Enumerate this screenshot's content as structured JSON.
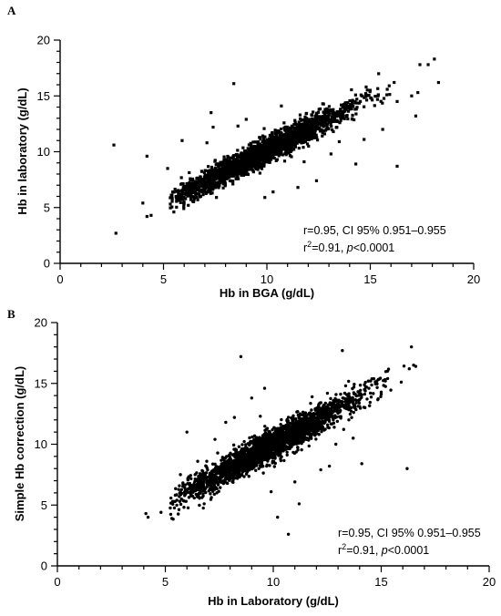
{
  "chart_data": [
    {
      "panel": "A",
      "type": "scatter",
      "xlabel": "Hb in BGA (g/dL)",
      "ylabel": "Hb in laboratory (g/dL)",
      "xlim": [
        0,
        20
      ],
      "ylim": [
        0,
        20
      ],
      "xticks": [
        0,
        5,
        10,
        15,
        20
      ],
      "yticks": [
        0,
        5,
        10,
        15,
        20
      ],
      "minor_x_step": 1,
      "minor_y_step": 1,
      "point_shape": "square",
      "color": "#000000",
      "grid": false,
      "stats_line1": "r=0.95, CI 95% 0.951–0.955",
      "stats_r2_prefix": "r",
      "stats_r2_sup": "2",
      "stats_r2_value": "=0.91, ",
      "stats_p_label": "p",
      "stats_p_value": "<0.0001",
      "trend": {
        "slope": 0.95,
        "intercept": 0.6,
        "spread": 0.55,
        "x_center": 9.8,
        "x_sd": 2.1,
        "n_cloud": 2600
      },
      "points": [
        [
          2.6,
          10.6
        ],
        [
          2.7,
          2.7
        ],
        [
          4.0,
          5.4
        ],
        [
          4.2,
          4.2
        ],
        [
          4.4,
          4.3
        ],
        [
          4.2,
          9.6
        ],
        [
          5.2,
          8.5
        ],
        [
          5.5,
          4.6
        ],
        [
          5.9,
          11.0
        ],
        [
          6.8,
          6.0
        ],
        [
          7.3,
          13.5
        ],
        [
          7.4,
          12.2
        ],
        [
          8.4,
          16.1
        ],
        [
          8.6,
          12.3
        ],
        [
          9.9,
          5.9
        ],
        [
          10.3,
          6.4
        ],
        [
          11.5,
          6.8
        ],
        [
          11.9,
          13.4
        ],
        [
          12.0,
          12.9
        ],
        [
          12.4,
          7.4
        ],
        [
          12.7,
          14.3
        ],
        [
          13.5,
          10.9
        ],
        [
          14.3,
          8.9
        ],
        [
          14.7,
          11.1
        ],
        [
          14.8,
          15.8
        ],
        [
          15.8,
          15.1
        ],
        [
          16.3,
          14.5
        ],
        [
          16.3,
          8.7
        ],
        [
          17.0,
          15.0
        ],
        [
          17.2,
          13.2
        ],
        [
          17.3,
          15.3
        ],
        [
          17.4,
          17.8
        ],
        [
          17.8,
          17.8
        ],
        [
          18.1,
          18.3
        ],
        [
          18.3,
          16.2
        ],
        [
          7.1,
          10.8
        ],
        [
          6.2,
          5.2
        ],
        [
          10.7,
          14.1
        ],
        [
          11.8,
          9.1
        ],
        [
          9.0,
          12.9
        ],
        [
          13.1,
          9.8
        ],
        [
          15.6,
          12.0
        ]
      ]
    },
    {
      "panel": "B",
      "type": "scatter",
      "xlabel": "Hb in Laboratory (g/dL)",
      "ylabel": "Simple Hb  correction (g/dL)",
      "xlim": [
        0,
        20
      ],
      "ylim": [
        0,
        20
      ],
      "xticks": [
        0,
        5,
        10,
        15,
        20
      ],
      "yticks": [
        0,
        5,
        10,
        15,
        20
      ],
      "minor_x_step": 1,
      "minor_y_step": 1,
      "point_shape": "circle",
      "color": "#000000",
      "grid": false,
      "stats_line1": "r=0.95, CI 95% 0.951–0.955",
      "stats_r2_prefix": "r",
      "stats_r2_sup": "2",
      "stats_r2_value": "=0.91, ",
      "stats_p_label": "p",
      "stats_p_value": "<0.0001",
      "trend": {
        "slope": 0.98,
        "intercept": 0.2,
        "spread": 0.6,
        "x_center": 9.8,
        "x_sd": 2.1,
        "n_cloud": 2600
      },
      "points": [
        [
          4.1,
          4.3
        ],
        [
          4.2,
          4.0
        ],
        [
          4.8,
          4.4
        ],
        [
          5.3,
          3.9
        ],
        [
          5.7,
          7.5
        ],
        [
          6.0,
          11.0
        ],
        [
          6.8,
          5.1
        ],
        [
          7.3,
          10.4
        ],
        [
          8.2,
          12.2
        ],
        [
          8.5,
          17.2
        ],
        [
          9.0,
          13.8
        ],
        [
          9.4,
          12.3
        ],
        [
          9.9,
          6.1
        ],
        [
          10.2,
          4.0
        ],
        [
          10.7,
          2.6
        ],
        [
          11.2,
          5.1
        ],
        [
          11.8,
          13.9
        ],
        [
          12.2,
          7.9
        ],
        [
          12.6,
          8.2
        ],
        [
          13.2,
          17.7
        ],
        [
          13.7,
          10.5
        ],
        [
          14.1,
          8.4
        ],
        [
          14.5,
          14.2
        ],
        [
          16.2,
          8.0
        ],
        [
          16.3,
          16.2
        ],
        [
          16.4,
          18.0
        ],
        [
          16.5,
          16.5
        ],
        [
          16.6,
          16.4
        ],
        [
          15.3,
          15.4
        ],
        [
          14.8,
          15.2
        ],
        [
          7.8,
          11.8
        ],
        [
          11.0,
          6.9
        ],
        [
          12.9,
          10.0
        ],
        [
          9.6,
          14.6
        ],
        [
          13.5,
          12.0
        ],
        [
          6.5,
          8.6
        ]
      ]
    }
  ]
}
